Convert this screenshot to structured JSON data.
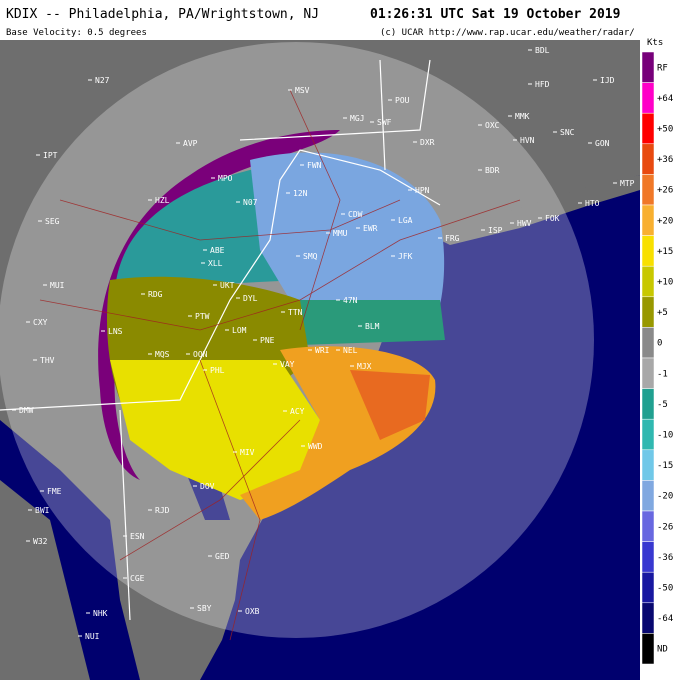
{
  "header": {
    "title": "KDIX -- Philadelphia, PA/Wrightstown, NJ",
    "timestamp": "01:26:31 UTC Sat 19 October 2019",
    "product": "Base Velocity: 0.5 degrees",
    "credit": "(c) UCAR  http://www.rap.ucar.edu/weather/radar/"
  },
  "legend": {
    "unit": "Kts",
    "entries": [
      {
        "label": "RF",
        "color": "#77007a"
      },
      {
        "label": "+64",
        "color": "#ff00c8"
      },
      {
        "label": "+50",
        "color": "#ff0000"
      },
      {
        "label": "+36",
        "color": "#e84a10"
      },
      {
        "label": "+26",
        "color": "#f07828"
      },
      {
        "label": "+20",
        "color": "#f8b030"
      },
      {
        "label": "+15",
        "color": "#f8e000"
      },
      {
        "label": "+10",
        "color": "#c8c800"
      },
      {
        "label": "+5",
        "color": "#989800"
      },
      {
        "label": "0",
        "color": "#8a8a8a"
      },
      {
        "label": "-1",
        "color": "#a8a8a8"
      },
      {
        "label": "-5",
        "color": "#20a090"
      },
      {
        "label": "-10",
        "color": "#30b8b0"
      },
      {
        "label": "-15",
        "color": "#70c8e8"
      },
      {
        "label": "-20",
        "color": "#80a8e0"
      },
      {
        "label": "-26",
        "color": "#6868e0"
      },
      {
        "label": "-36",
        "color": "#3838d0"
      },
      {
        "label": "-50",
        "color": "#1818a0"
      },
      {
        "label": "-64",
        "color": "#080870"
      },
      {
        "label": "ND",
        "color": "#000000"
      }
    ]
  },
  "stations": [
    "MSV",
    "POU",
    "MGJ",
    "SWF",
    "DXR",
    "OXC",
    "MMK",
    "HVN",
    "SNC",
    "BDL",
    "HFD",
    "IJD",
    "GON",
    "BDR",
    "MTP",
    "HTO",
    "FOK",
    "HWV",
    "ISP",
    "FRG",
    "HPN",
    "LGA",
    "EWR",
    "CDW",
    "MMU",
    "JFK",
    "FWN",
    "12N",
    "N07",
    "MPO",
    "AVP",
    "HZL",
    "N27",
    "IPT",
    "SEG",
    "ABE",
    "XLL",
    "UKT",
    "DYL",
    "SMQ",
    "47N",
    "TTN",
    "BLM",
    "NEL",
    "RDG",
    "MUI",
    "CXY",
    "LNS",
    "PTW",
    "LOM",
    "PNE",
    "MQS",
    "OQN",
    "PHL",
    "VAY",
    "WRI",
    "MJX",
    "THV",
    "DMW",
    "ACY",
    "WWD",
    "MIV",
    "DOV",
    "FME",
    "BWI",
    "W32",
    "RJD",
    "ESN",
    "GED",
    "CGE",
    "SBY",
    "OXB",
    "NHK",
    "NUI"
  ]
}
